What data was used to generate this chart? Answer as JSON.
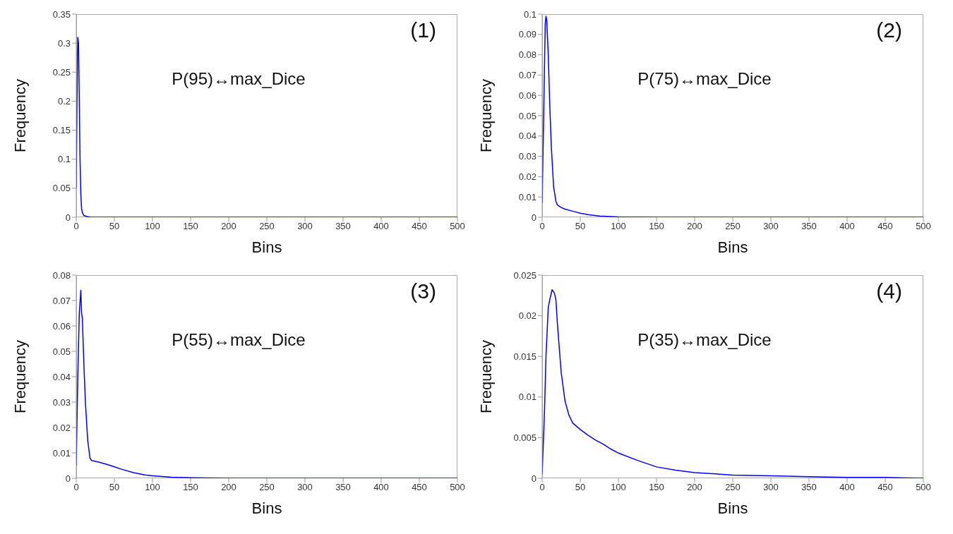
{
  "chart_data": [
    {
      "type": "line",
      "xlabel": "Bins",
      "ylabel": "Frequency",
      "annotations": [
        "(1)",
        "P(95)↔max_Dice"
      ],
      "xlim": [
        0,
        500
      ],
      "xticks": [
        0,
        50,
        100,
        150,
        200,
        250,
        300,
        350,
        400,
        450,
        500
      ],
      "ylim": [
        0,
        0.35
      ],
      "yticks": [
        0,
        0.05,
        0.1,
        0.15,
        0.2,
        0.25,
        0.3,
        0.35
      ],
      "grid": false,
      "marker": "none",
      "line_style": "solid",
      "series": [
        {
          "color": "#0000ff",
          "x": [
            0,
            1,
            2,
            3,
            4,
            5,
            6,
            7,
            8,
            10,
            15,
            20,
            50,
            100,
            200,
            300,
            400,
            500
          ],
          "values": [
            0.05,
            0.2,
            0.31,
            0.3,
            0.2,
            0.1,
            0.04,
            0.015,
            0.008,
            0.003,
            0.001,
            0,
            0,
            0,
            0,
            0,
            0,
            0
          ]
        }
      ]
    },
    {
      "type": "line",
      "xlabel": "Bins",
      "ylabel": "Frequency",
      "annotations": [
        "(2)",
        "P(75)↔max_Dice"
      ],
      "xlim": [
        0,
        500
      ],
      "xticks": [
        0,
        50,
        100,
        150,
        200,
        250,
        300,
        350,
        400,
        450,
        500
      ],
      "ylim": [
        0,
        0.1
      ],
      "yticks": [
        0,
        0.01,
        0.02,
        0.03,
        0.04,
        0.05,
        0.06,
        0.07,
        0.08,
        0.09,
        0.1
      ],
      "grid": false,
      "marker": "none",
      "line_style": "solid",
      "series": [
        {
          "color": "#0000ff",
          "x": [
            0,
            2,
            4,
            5,
            6,
            8,
            10,
            12,
            15,
            18,
            20,
            25,
            30,
            40,
            50,
            60,
            75,
            100,
            150,
            200,
            300,
            400,
            500
          ],
          "values": [
            0.007,
            0.05,
            0.095,
            0.099,
            0.097,
            0.08,
            0.055,
            0.035,
            0.015,
            0.008,
            0.006,
            0.0048,
            0.004,
            0.003,
            0.002,
            0.0013,
            0.0006,
            0.0002,
            0,
            0,
            0,
            0,
            0
          ]
        }
      ]
    },
    {
      "type": "line",
      "xlabel": "Bins",
      "ylabel": "Frequency",
      "annotations": [
        "(3)",
        "P(55)↔max_Dice"
      ],
      "xlim": [
        0,
        500
      ],
      "xticks": [
        0,
        50,
        100,
        150,
        200,
        250,
        300,
        350,
        400,
        450,
        500
      ],
      "ylim": [
        0,
        0.08
      ],
      "yticks": [
        0,
        0.01,
        0.02,
        0.03,
        0.04,
        0.05,
        0.06,
        0.07,
        0.08
      ],
      "grid": false,
      "marker": "none",
      "line_style": "solid",
      "series": [
        {
          "color": "#0000ff",
          "x": [
            0,
            2,
            4,
            6,
            7,
            8,
            10,
            12,
            15,
            18,
            20,
            30,
            40,
            50,
            60,
            75,
            90,
            100,
            125,
            150,
            200,
            250,
            300,
            400,
            500
          ],
          "values": [
            0.005,
            0.04,
            0.065,
            0.074,
            0.065,
            0.063,
            0.045,
            0.03,
            0.015,
            0.008,
            0.007,
            0.0063,
            0.0055,
            0.0045,
            0.0035,
            0.0022,
            0.0013,
            0.001,
            0.0004,
            0.0002,
            0,
            0,
            0,
            0,
            0
          ]
        }
      ]
    },
    {
      "type": "line",
      "xlabel": "Bins",
      "ylabel": "Frequency",
      "annotations": [
        "(4)",
        "P(35)↔max_Dice"
      ],
      "xlim": [
        0,
        500
      ],
      "xticks": [
        0,
        50,
        100,
        150,
        200,
        250,
        300,
        350,
        400,
        450,
        500
      ],
      "ylim": [
        0,
        0.025
      ],
      "yticks": [
        0,
        0.005,
        0.01,
        0.015,
        0.02,
        0.025
      ],
      "grid": false,
      "marker": "none",
      "line_style": "solid",
      "series": [
        {
          "color": "#0000ff",
          "x": [
            0,
            3,
            5,
            8,
            10,
            13,
            16,
            18,
            20,
            25,
            30,
            35,
            40,
            50,
            60,
            70,
            80,
            90,
            100,
            125,
            150,
            175,
            200,
            250,
            300,
            350,
            400,
            450,
            500
          ],
          "values": [
            0.0005,
            0.008,
            0.015,
            0.021,
            0.022,
            0.0232,
            0.0228,
            0.022,
            0.019,
            0.013,
            0.0095,
            0.0078,
            0.0068,
            0.006,
            0.0053,
            0.0047,
            0.0042,
            0.0036,
            0.0031,
            0.0022,
            0.0014,
            0.001,
            0.0007,
            0.0004,
            0.0003,
            0.0002,
            0.0001,
            0.0001,
            0
          ]
        }
      ]
    }
  ]
}
